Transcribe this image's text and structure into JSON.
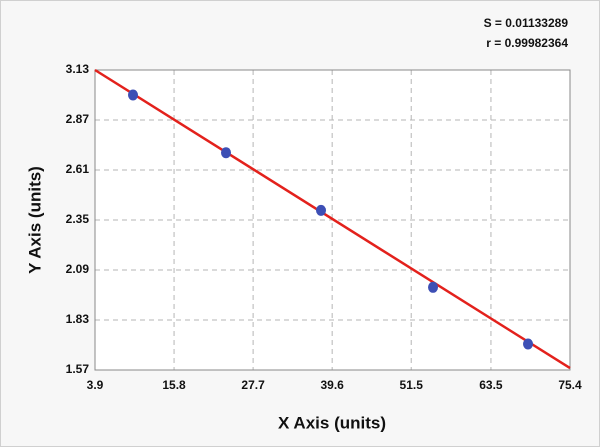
{
  "chart_data": {
    "type": "scatter",
    "annotations": [
      "S = 0.01133289",
      "r = 0.99982364"
    ],
    "x_label": "X Axis (units)",
    "y_label": "Y Axis (units)",
    "series": [
      {
        "color": "#3d4fb5",
        "x": [
          9.62,
          23.62,
          37.92,
          54.78,
          69.08
        ],
        "values": [
          3.0,
          2.7,
          2.4,
          2.0,
          1.705
        ]
      }
    ],
    "fit": {
      "color": "#e3211c",
      "x": [
        3.9,
        75.4
      ],
      "y": [
        3.13,
        1.58
      ]
    },
    "xlim": [
      3.9,
      75.4
    ],
    "xticks": [
      3.9,
      15.8,
      27.7,
      39.6,
      51.5,
      63.5,
      75.4
    ],
    "ylim": [
      1.57,
      3.13
    ],
    "yticks": [
      1.57,
      1.83,
      2.09,
      2.35,
      2.61,
      2.87,
      3.13
    ],
    "grid": true
  }
}
